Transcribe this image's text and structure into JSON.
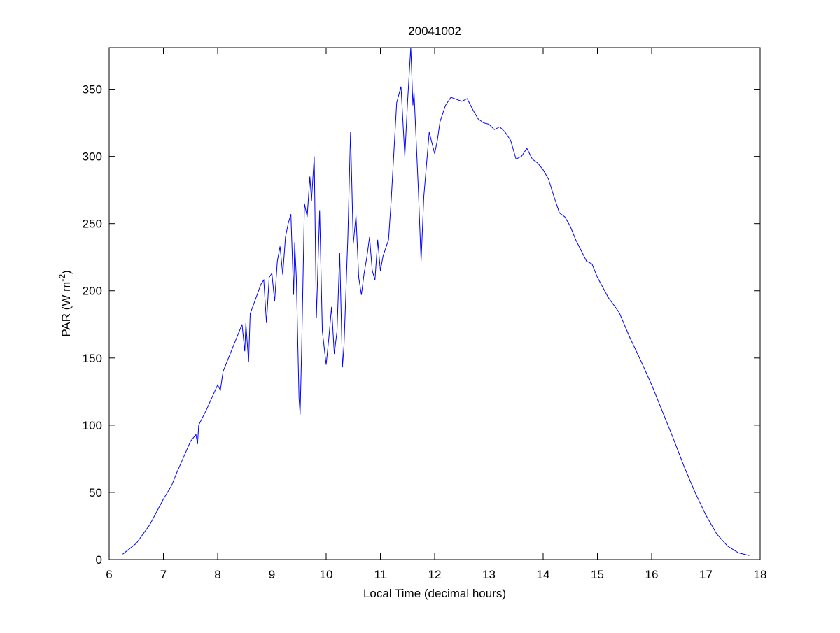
{
  "chart_data": {
    "type": "line",
    "title": "20041002",
    "xlabel": "Local Time (decimal hours)",
    "ylabel_parts": [
      "PAR (W m",
      "-2",
      ")"
    ],
    "xlim": [
      6,
      18
    ],
    "xticks": [
      6,
      7,
      8,
      9,
      10,
      11,
      12,
      13,
      14,
      15,
      16,
      17,
      18
    ],
    "ylim": [
      0,
      381
    ],
    "yticks": [
      0,
      50,
      100,
      150,
      200,
      250,
      300,
      350
    ],
    "grid": false,
    "series": [
      {
        "color": "#0000ff",
        "x": [
          6.25,
          6.5,
          6.75,
          7.0,
          7.15,
          7.25,
          7.5,
          7.6,
          7.63,
          7.65,
          7.8,
          8.0,
          8.05,
          8.1,
          8.3,
          8.45,
          8.5,
          8.52,
          8.57,
          8.6,
          8.8,
          8.85,
          8.9,
          8.95,
          9.0,
          9.05,
          9.1,
          9.15,
          9.2,
          9.25,
          9.3,
          9.35,
          9.4,
          9.42,
          9.45,
          9.5,
          9.52,
          9.55,
          9.6,
          9.65,
          9.7,
          9.73,
          9.78,
          9.82,
          9.88,
          9.93,
          10.0,
          10.05,
          10.1,
          10.15,
          10.2,
          10.25,
          10.3,
          10.33,
          10.4,
          10.45,
          10.5,
          10.55,
          10.6,
          10.65,
          10.7,
          10.75,
          10.8,
          10.85,
          10.9,
          10.95,
          11.0,
          11.05,
          11.15,
          11.2,
          11.3,
          11.38,
          11.45,
          11.5,
          11.56,
          11.6,
          11.62,
          11.7,
          11.75,
          11.8,
          11.9,
          12.0,
          12.05,
          12.1,
          12.2,
          12.3,
          12.5,
          12.6,
          12.7,
          12.8,
          12.9,
          13.0,
          13.1,
          13.2,
          13.3,
          13.4,
          13.5,
          13.6,
          13.7,
          13.8,
          13.9,
          14.0,
          14.1,
          14.2,
          14.3,
          14.4,
          14.5,
          14.6,
          14.7,
          14.8,
          14.9,
          15.0,
          15.2,
          15.4,
          15.6,
          15.8,
          16.0,
          16.2,
          16.4,
          16.6,
          16.8,
          17.0,
          17.2,
          17.4,
          17.6,
          17.8
        ],
        "values": [
          4,
          12,
          26,
          45,
          55,
          65,
          88,
          93,
          86,
          100,
          112,
          130,
          126,
          140,
          160,
          175,
          155,
          176,
          147,
          183,
          205,
          208,
          176,
          210,
          213,
          192,
          222,
          233,
          212,
          240,
          250,
          257,
          197,
          236,
          210,
          120,
          108,
          160,
          265,
          255,
          285,
          267,
          300,
          180,
          260,
          170,
          145,
          165,
          188,
          153,
          170,
          228,
          143,
          160,
          240,
          318,
          235,
          256,
          210,
          197,
          213,
          225,
          240,
          215,
          208,
          238,
          215,
          226,
          238,
          268,
          340,
          352,
          300,
          340,
          381,
          338,
          348,
          275,
          222,
          270,
          318,
          302,
          312,
          326,
          338,
          344,
          341,
          343,
          335,
          328,
          325,
          324,
          320,
          322,
          318,
          312,
          298,
          300,
          306,
          298,
          295,
          290,
          283,
          270,
          258,
          255,
          248,
          238,
          230,
          222,
          220,
          210,
          195,
          184,
          165,
          148,
          130,
          110,
          90,
          69,
          50,
          33,
          19,
          10,
          5,
          3
        ]
      }
    ]
  }
}
